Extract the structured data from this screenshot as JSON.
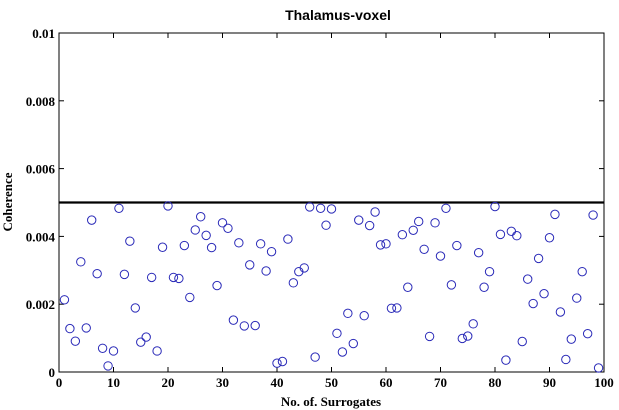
{
  "chart_data": {
    "type": "scatter",
    "title": "Thalamus-voxel",
    "xlabel": "No. of. Surrogates",
    "ylabel": "Coherence",
    "xlim": [
      0,
      100
    ],
    "ylim": [
      0,
      0.01
    ],
    "x_ticks": [
      "0",
      "10",
      "20",
      "30",
      "40",
      "50",
      "60",
      "70",
      "80",
      "90",
      "100"
    ],
    "y_ticks": [
      "0",
      "0.002",
      "0.004",
      "0.006",
      "0.008",
      "0.01"
    ],
    "grid": false,
    "threshold": 0.005,
    "marker": "circle-open",
    "colors": {
      "marker": "#2a2ab8",
      "threshold": "#000000"
    },
    "x": [
      1,
      2,
      3,
      4,
      5,
      6,
      7,
      8,
      9,
      10,
      11,
      12,
      13,
      14,
      15,
      16,
      17,
      18,
      19,
      20,
      21,
      22,
      23,
      24,
      25,
      26,
      27,
      28,
      29,
      30,
      31,
      32,
      33,
      34,
      35,
      36,
      37,
      38,
      39,
      40,
      41,
      42,
      43,
      44,
      45,
      46,
      47,
      48,
      49,
      50,
      51,
      52,
      53,
      54,
      55,
      56,
      57,
      58,
      59,
      60,
      61,
      62,
      63,
      64,
      65,
      66,
      67,
      68,
      69,
      70,
      71,
      72,
      73,
      74,
      75,
      76,
      77,
      78,
      79,
      80,
      81,
      82,
      83,
      84,
      85,
      86,
      87,
      88,
      89,
      90,
      91,
      92,
      93,
      94,
      95,
      96,
      97,
      98,
      99
    ],
    "y": [
      0.00213,
      0.00128,
      0.00091,
      0.00325,
      0.0013,
      0.00448,
      0.0029,
      0.0007,
      0.00018,
      0.00062,
      0.00483,
      0.00288,
      0.00386,
      0.00189,
      0.00088,
      0.00103,
      0.00279,
      0.00062,
      0.00368,
      0.0049,
      0.00279,
      0.00276,
      0.00373,
      0.0022,
      0.00419,
      0.00458,
      0.00403,
      0.00367,
      0.00255,
      0.0044,
      0.00424,
      0.00153,
      0.00381,
      0.00136,
      0.00316,
      0.00137,
      0.00378,
      0.00298,
      0.00355,
      0.00026,
      0.00031,
      0.00392,
      0.00263,
      0.00296,
      0.00307,
      0.00487,
      0.00044,
      0.00483,
      0.00433,
      0.00481,
      0.00114,
      0.00059,
      0.00173,
      0.00084,
      0.00448,
      0.00166,
      0.00432,
      0.00472,
      0.00375,
      0.00378,
      0.00188,
      0.00189,
      0.00405,
      0.0025,
      0.00418,
      0.00444,
      0.00362,
      0.00105,
      0.0044,
      0.00342,
      0.00483,
      0.00257,
      0.00373,
      0.00099,
      0.00106,
      0.00142,
      0.00352,
      0.0025,
      0.00296,
      0.00488,
      0.00406,
      0.00035,
      0.00415,
      0.00402,
      0.0009,
      0.00274,
      0.00202,
      0.00335,
      0.00231,
      0.00396,
      0.00465,
      0.00177,
      0.00037,
      0.00097,
      0.00218,
      0.00296,
      0.00113,
      0.00463,
      0.00012
    ]
  }
}
